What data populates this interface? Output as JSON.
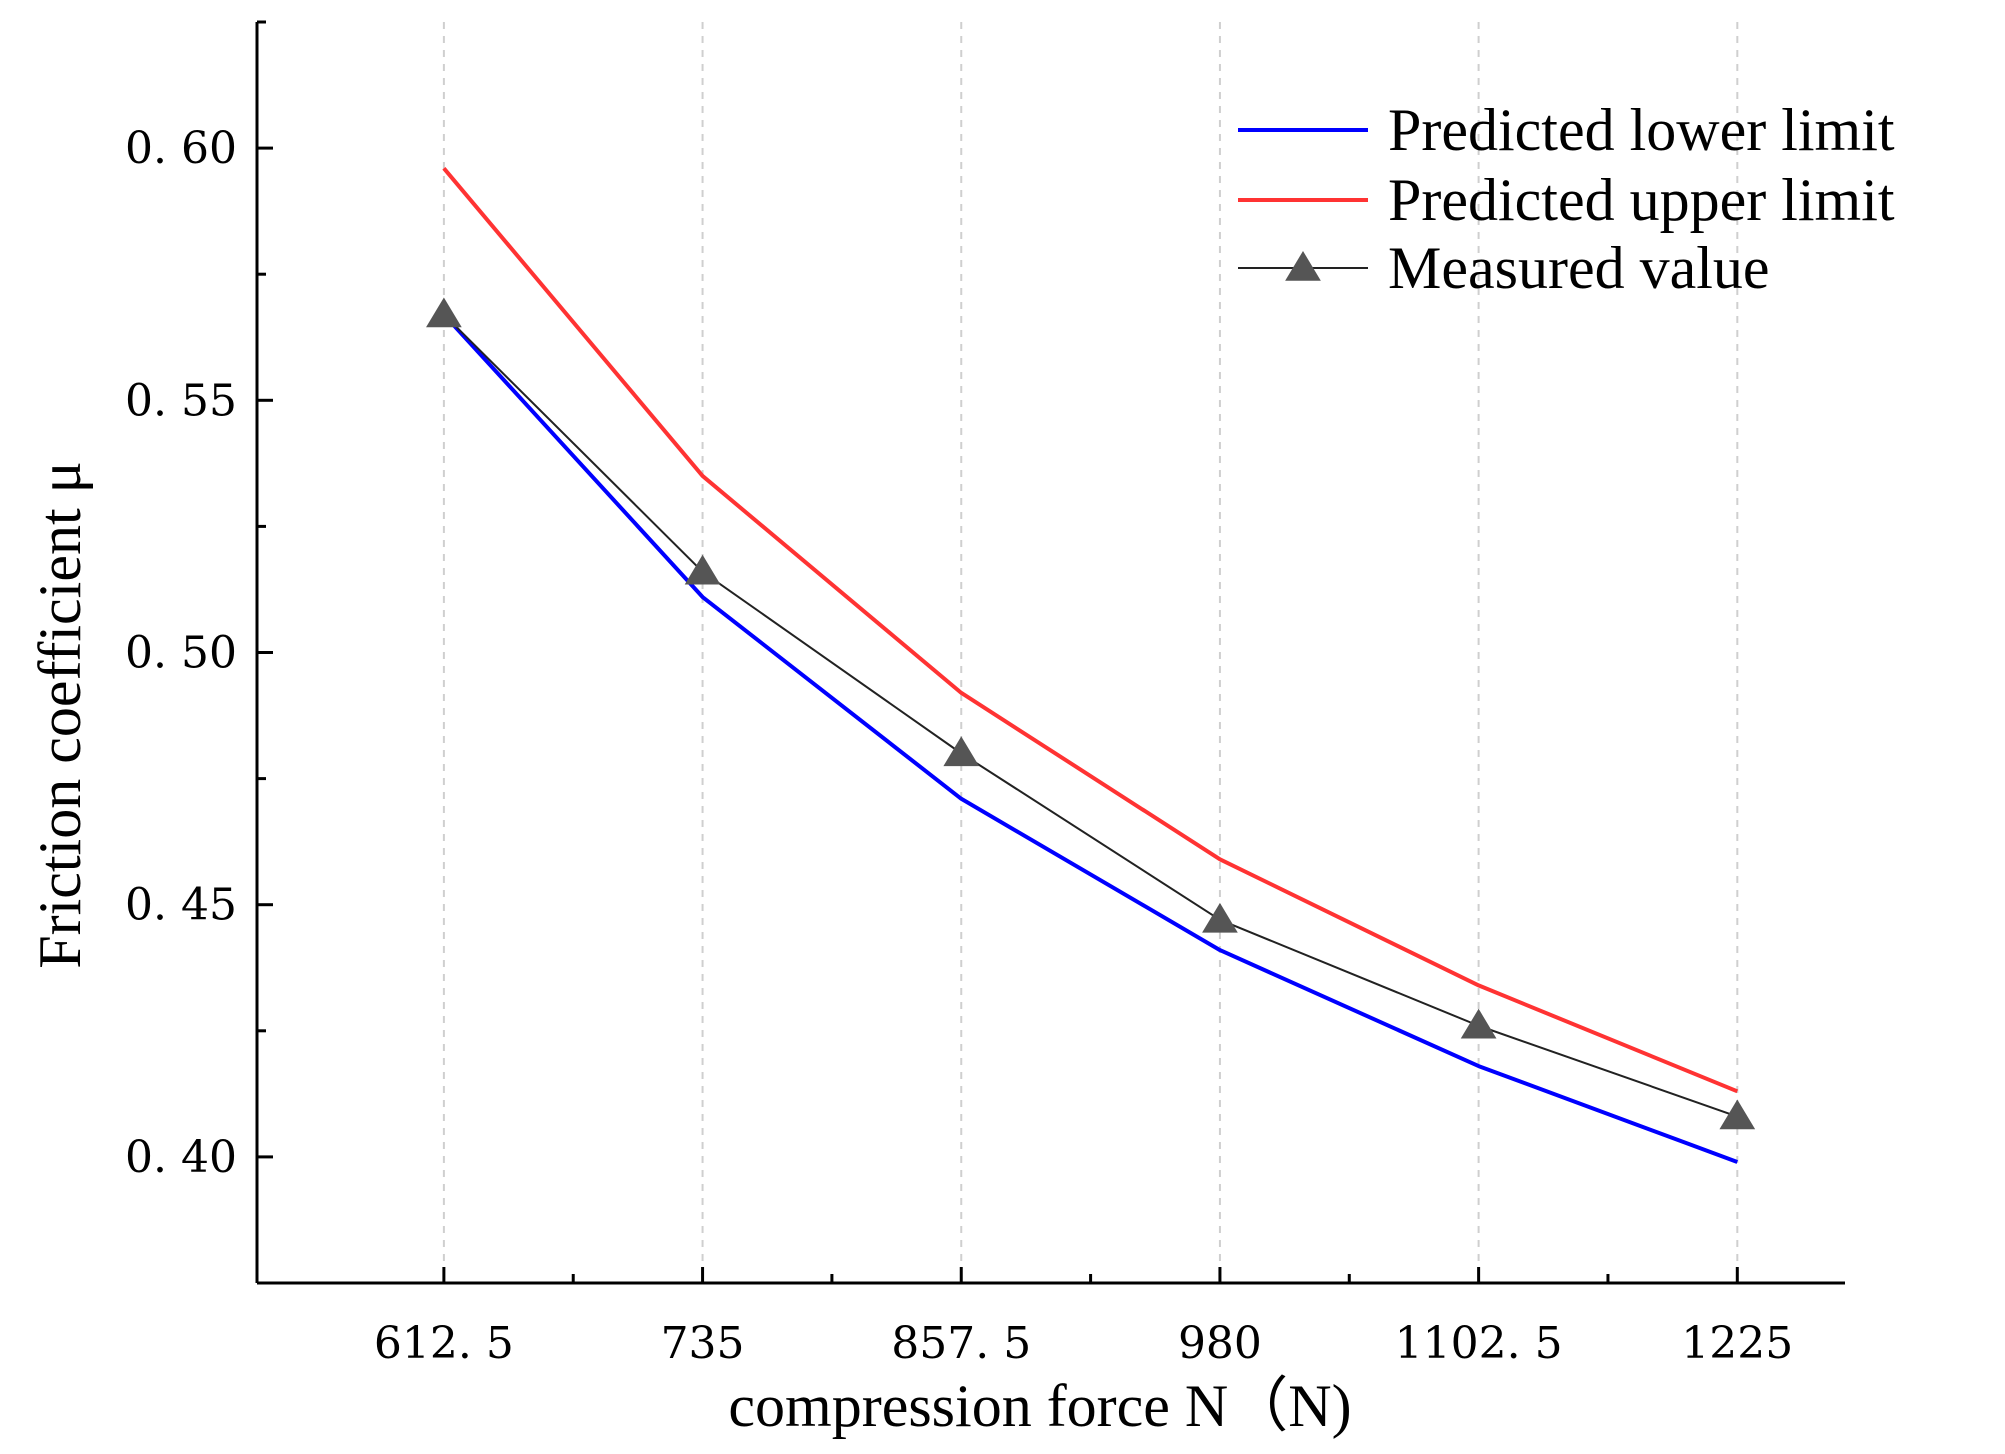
{
  "chart_data": {
    "type": "line",
    "title": "",
    "xlabel": "compression force N（N)",
    "ylabel": "Friction coefficient μ",
    "x": [
      612.5,
      735,
      857.5,
      980,
      1102.5,
      1225
    ],
    "xtick_labels": [
      "612. 5",
      "735",
      "857. 5",
      "980",
      "1102. 5",
      "1225"
    ],
    "ytick_values": [
      0.4,
      0.45,
      0.5,
      0.55,
      0.6
    ],
    "ytick_labels": [
      "0. 40",
      "0. 45",
      "0. 50",
      "0. 55",
      "0. 60"
    ],
    "xlim": [
      524,
      1276
    ],
    "ylim": [
      0.375,
      0.625
    ],
    "grid": "vertical dashed",
    "legend_position": "top-right",
    "series": [
      {
        "name": "Predicted lower limit",
        "color": "#0000ff",
        "marker": "none",
        "values": [
          0.567,
          0.511,
          0.471,
          0.441,
          0.418,
          0.399
        ]
      },
      {
        "name": "Predicted upper limit",
        "color": "#ff3333",
        "marker": "none",
        "values": [
          0.596,
          0.535,
          0.492,
          0.459,
          0.434,
          0.413
        ]
      },
      {
        "name": "Measured value",
        "color": "#222222",
        "marker": "triangle",
        "marker_color": "#555555",
        "values": [
          0.567,
          0.516,
          0.48,
          0.447,
          0.426,
          0.408
        ]
      }
    ]
  }
}
